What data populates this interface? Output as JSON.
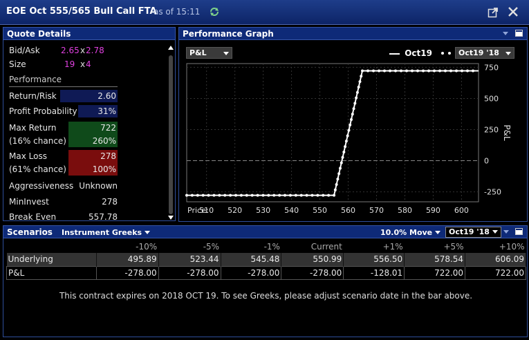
{
  "window": {
    "title": "EOE Oct 555/565 Bull Call FTA",
    "as_of": "as of 15:11"
  },
  "quote_details": {
    "header": "Quote Details",
    "bid_ask_label": "Bid/Ask",
    "bid": "2.65",
    "ask": "2.78",
    "size_label": "Size",
    "bid_size": "19",
    "ask_size": "4",
    "x_sep": "x",
    "performance_label": "Performance",
    "return_risk_label": "Return/Risk",
    "return_risk": "2.60",
    "profit_prob_label": "Profit Probability",
    "profit_prob": "31%",
    "max_return_label": "Max Return",
    "max_return": "722",
    "max_return_chance": "(16% chance)",
    "max_return_pct": "260%",
    "max_loss_label": "Max Loss",
    "max_loss": "278",
    "max_loss_chance": "(61% chance)",
    "max_loss_pct": "100%",
    "aggressiveness_label": "Aggressiveness",
    "aggressiveness": "Unknown",
    "mininvest_label": "MinInvest",
    "mininvest": "278",
    "break_even_label": "Break Even",
    "break_even": "557.78"
  },
  "performance_graph": {
    "header": "Performance Graph",
    "metric_select": "P&L",
    "legend_solid": "Oct19",
    "legend_dotted_select": "Oct19 '18",
    "x_prefix": "Price:"
  },
  "chart_data": {
    "type": "line",
    "xlabel": "Price:",
    "ylabel": "P&L",
    "xlim": [
      503,
      606
    ],
    "ylim": [
      -330,
      780
    ],
    "x_ticks": [
      510,
      520,
      530,
      540,
      550,
      560,
      570,
      580,
      590,
      600
    ],
    "y_ticks": [
      750,
      500,
      250,
      0,
      -250
    ],
    "grid": true,
    "series": [
      {
        "name": "Oct19",
        "style": "solid",
        "x": [
          503,
          555,
          565,
          606
        ],
        "y": [
          -278,
          -278,
          722,
          722
        ]
      },
      {
        "name": "Oct19 '18",
        "style": "dotted",
        "x": [
          503,
          555,
          565,
          606
        ],
        "y": [
          -278,
          -278,
          722,
          722
        ]
      }
    ]
  },
  "scenarios": {
    "header": "Scenarios",
    "greeks_select": "Instrument Greeks",
    "move_select": "10.0% Move",
    "date_select": "Oct19 '18",
    "columns": [
      "",
      "-10%",
      "-5%",
      "-1%",
      "Current",
      "+1%",
      "+5%",
      "+10%"
    ],
    "rows": [
      {
        "label": "Underlying",
        "values": [
          "495.89",
          "523.44",
          "545.48",
          "550.99",
          "556.50",
          "578.54",
          "606.09"
        ]
      },
      {
        "label": "P&L",
        "values": [
          "-278.00",
          "-278.00",
          "-278.00",
          "-278.00",
          "-128.01",
          "722.00",
          "722.00"
        ]
      }
    ],
    "message": "This contract expires on 2018 OCT 19. To see Greeks, please adjust scenario date in the bar above."
  },
  "colors": {
    "accent_blue": "#0e2a78",
    "magenta": "#e040e0",
    "green_box": "#0f4a1a",
    "red_box": "#7a0d0d"
  },
  "icons": [
    "refresh-icon",
    "popout-icon",
    "close-icon"
  ]
}
